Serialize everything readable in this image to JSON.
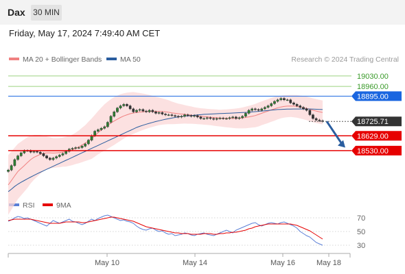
{
  "header": {
    "symbol": "Dax",
    "timeframe": "30 MIN",
    "datetime": "Friday, May 17, 2024 7:49:40 AM CET"
  },
  "legend": {
    "ma20": {
      "label": "MA 20 + Bollinger Bands",
      "color": "#f08080"
    },
    "ma50": {
      "label": "MA 50",
      "color": "#2a5d9f"
    },
    "credit": "Research © 2024 Trading Central"
  },
  "rsi_legend": {
    "rsi": {
      "label": "RSI",
      "color": "#5b7fd6"
    },
    "ma9": {
      "label": "9MA",
      "color": "#e60000"
    }
  },
  "colors": {
    "resistance": "#1a66e0",
    "support": "#e60000",
    "target": "#3a9a2a",
    "current": "#333333",
    "arrow": "#2a5d9f"
  },
  "chart_data": [
    {
      "type": "candlestick",
      "title": "Dax",
      "ylim": [
        18245,
        19080
      ],
      "x_ticks": [
        "May 10",
        "May 14",
        "May 16",
        "May 18"
      ],
      "levels": [
        {
          "value": 19030,
          "label": "19030.00",
          "kind": "target"
        },
        {
          "value": 18960,
          "label": "18960.00",
          "kind": "target"
        },
        {
          "value": 18895,
          "label": "18895.00",
          "kind": "resistance"
        },
        {
          "value": 18725.71,
          "label": "18725.71",
          "kind": "current"
        },
        {
          "value": 18629,
          "label": "18629.00",
          "kind": "support"
        },
        {
          "value": 18530,
          "label": "18530.00",
          "kind": "support"
        }
      ],
      "close": [
        18400,
        18430,
        18470,
        18495,
        18515,
        18530,
        18530,
        18520,
        18525,
        18520,
        18510,
        18495,
        18480,
        18470,
        18480,
        18490,
        18500,
        18510,
        18525,
        18540,
        18545,
        18550,
        18550,
        18560,
        18575,
        18600,
        18630,
        18660,
        18670,
        18680,
        18690,
        18720,
        18760,
        18790,
        18815,
        18830,
        18840,
        18830,
        18810,
        18790,
        18800,
        18805,
        18795,
        18790,
        18800,
        18790,
        18780,
        18785,
        18775,
        18770,
        18770,
        18765,
        18760,
        18755,
        18760,
        18770,
        18765,
        18760,
        18765,
        18755,
        18745,
        18745,
        18750,
        18745,
        18740,
        18745,
        18748,
        18745,
        18745,
        18750,
        18755,
        18745,
        18750,
        18760,
        18780,
        18800,
        18810,
        18805,
        18800,
        18810,
        18820,
        18830,
        18845,
        18860,
        18870,
        18880,
        18870,
        18870,
        18850,
        18840,
        18830,
        18820,
        18810,
        18800,
        18770,
        18745,
        18735,
        18730,
        18726
      ],
      "ma20": [
        18300,
        18330,
        18360,
        18390,
        18410,
        18430,
        18450,
        18470,
        18485,
        18495,
        18505,
        18512,
        18515,
        18515,
        18514,
        18515,
        18517,
        18520,
        18523,
        18528,
        18535,
        18545,
        18555,
        18568,
        18580,
        18595,
        18610,
        18630,
        18650,
        18668,
        18685,
        18700,
        18715,
        18728,
        18740,
        18752,
        18762,
        18770,
        18777,
        18782,
        18785,
        18788,
        18790,
        18792,
        18793,
        18793,
        18793,
        18793,
        18792,
        18790,
        18787,
        18783,
        18780,
        18777,
        18775,
        18773,
        18770,
        18768,
        18765,
        18762,
        18760,
        18758,
        18756,
        18754,
        18752,
        18750,
        18748,
        18747,
        18746,
        18746,
        18746,
        18746,
        18747,
        18749,
        18752,
        18756,
        18760,
        18765,
        18772,
        18780,
        18788,
        18795,
        18803,
        18810,
        18817,
        18822,
        18826,
        18828,
        18829,
        18828,
        18826,
        18822,
        18818,
        18813,
        18807,
        18800,
        18795,
        18790,
        18786
      ],
      "ma50": [
        18255,
        18272,
        18290,
        18305,
        18318,
        18330,
        18342,
        18353,
        18364,
        18375,
        18385,
        18395,
        18405,
        18415,
        18425,
        18435,
        18445,
        18455,
        18465,
        18475,
        18485,
        18495,
        18505,
        18515,
        18525,
        18535,
        18545,
        18555,
        18565,
        18575,
        18585,
        18595,
        18605,
        18615,
        18625,
        18635,
        18645,
        18655,
        18665,
        18675,
        18685,
        18693,
        18700,
        18707,
        18713,
        18719,
        18725,
        18730,
        18735,
        18740,
        18744,
        18748,
        18752,
        18755,
        18758,
        18761,
        18763,
        18765,
        18767,
        18769,
        18771,
        18773,
        18774,
        18775,
        18776,
        18777,
        18778,
        18779,
        18780,
        18781,
        18782,
        18783,
        18784,
        18785,
        18786,
        18787,
        18789,
        18791,
        18793,
        18795,
        18797,
        18799,
        18801,
        18803,
        18805,
        18806,
        18807,
        18808,
        18808,
        18809,
        18809,
        18809,
        18809,
        18809,
        18809,
        18808,
        18807,
        18806,
        18805
      ],
      "bb_width": [
        200,
        195,
        190,
        185,
        180,
        175,
        170,
        160,
        150,
        140,
        130,
        120,
        110,
        105,
        100,
        98,
        98,
        98,
        100,
        100,
        102,
        105,
        110,
        115,
        120,
        128,
        135,
        140,
        145,
        150,
        155,
        158,
        160,
        160,
        158,
        156,
        152,
        148,
        144,
        140,
        134,
        128,
        122,
        116,
        110,
        104,
        98,
        93,
        88,
        84,
        80,
        76,
        72,
        68,
        65,
        62,
        60,
        58,
        56,
        55,
        54,
        54,
        54,
        54,
        55,
        56,
        56,
        58,
        60,
        62,
        64,
        66,
        68,
        70,
        72,
        74,
        76,
        78,
        80,
        80,
        80,
        80,
        80,
        80,
        78,
        76,
        75,
        74,
        74,
        75,
        76,
        77,
        78,
        79,
        80,
        80,
        80,
        80,
        80
      ],
      "projection": {
        "from": 18725.71,
        "to": 18550
      }
    },
    {
      "type": "line",
      "title": "RSI",
      "ylim": [
        20,
        80
      ],
      "y_ticks": [
        70,
        50,
        30
      ],
      "series": [
        {
          "name": "RSI",
          "values": [
            65,
            67,
            70,
            72,
            71,
            69,
            70,
            68,
            66,
            64,
            62,
            60,
            58,
            62,
            66,
            64,
            62,
            64,
            66,
            68,
            65,
            64,
            62,
            60,
            62,
            65,
            68,
            66,
            69,
            71,
            73,
            74,
            72,
            70,
            68,
            66,
            67,
            65,
            64,
            62,
            58,
            55,
            53,
            52,
            54,
            55,
            52,
            50,
            51,
            48,
            46,
            47,
            44,
            45,
            46,
            48,
            47,
            45,
            44,
            46,
            47,
            48,
            46,
            45,
            44,
            46,
            48,
            50,
            52,
            50,
            48,
            52,
            54,
            56,
            58,
            60,
            62,
            63,
            60,
            58,
            60,
            62,
            63,
            62,
            61,
            63,
            64,
            62,
            60,
            58,
            55,
            50,
            47,
            44,
            42,
            38,
            34,
            32,
            30
          ]
        },
        {
          "name": "9MA",
          "values": [
            66,
            67,
            68,
            68,
            68,
            68,
            68,
            68,
            67,
            66,
            65,
            64,
            63,
            62,
            62,
            62,
            62,
            63,
            64,
            64,
            64,
            64,
            64,
            63,
            63,
            64,
            65,
            66,
            67,
            68,
            69,
            70,
            71,
            71,
            70,
            69,
            68,
            67,
            66,
            65,
            63,
            61,
            59,
            57,
            56,
            55,
            54,
            53,
            52,
            51,
            50,
            49,
            48,
            48,
            47,
            47,
            47,
            46,
            46,
            46,
            46,
            47,
            47,
            47,
            46,
            46,
            47,
            47,
            48,
            48,
            49,
            49,
            50,
            51,
            52,
            54,
            55,
            57,
            58,
            59,
            60,
            61,
            61,
            61,
            61,
            61,
            61,
            61,
            61,
            60,
            59,
            57,
            55,
            53,
            51,
            48,
            45,
            42,
            39
          ]
        }
      ]
    }
  ]
}
